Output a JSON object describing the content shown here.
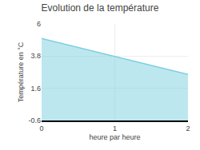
{
  "chart_data": {
    "type": "area",
    "title": "Evolution de la température",
    "xlabel": "heure par heure",
    "ylabel": "Température en °C",
    "x": [
      0,
      2.0
    ],
    "values": [
      5.0,
      2.55
    ],
    "color": "#7bcfe0",
    "xlim": [
      0,
      2.0
    ],
    "ylim": [
      -0.6,
      6.0
    ],
    "xticks": [
      0,
      1,
      2
    ],
    "yticks": [
      -0.6,
      1.6,
      3.8,
      6.0
    ],
    "grid": true
  }
}
